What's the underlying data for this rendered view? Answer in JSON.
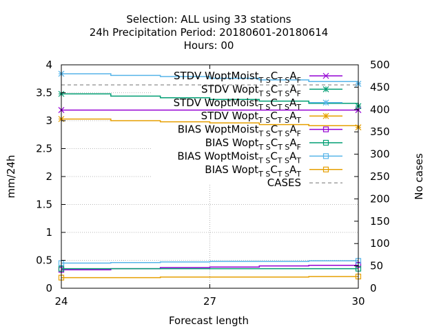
{
  "chart_data": {
    "type": "line",
    "title_lines": [
      "Selection: ALL using    33 stations",
      "24h Precipitation    Period: 20180601-20180614",
      "Hours:  00"
    ],
    "xlabel": "Forecast length",
    "ylabel": "mm/24h",
    "y2label": "No cases",
    "xlim": [
      24,
      30
    ],
    "ylim": [
      0,
      4
    ],
    "y2lim": [
      0,
      500
    ],
    "xticks": [
      "24",
      "27",
      "30"
    ],
    "yticks": [
      "0",
      "0.5",
      "1",
      "1.5",
      "2",
      "2.5",
      "3",
      "3.5",
      "4"
    ],
    "y2ticks": [
      "0",
      "50",
      "100",
      "150",
      "200",
      "250",
      "300",
      "350",
      "400",
      "450",
      "500"
    ],
    "grid": true,
    "legend_position": "top-right",
    "series": [
      {
        "name": "STDV WoptMoist",
        "sub1": "T S",
        "mid": "C",
        "sub2": "T S",
        "mid2": "A",
        "sub3": "F",
        "color": "#9400d3",
        "marker": "x",
        "x": [
          24,
          30
        ],
        "y": [
          3.19,
          3.19
        ]
      },
      {
        "name": "STDV Wopt",
        "sub1": "T S",
        "mid": "C",
        "sub2": "T S",
        "mid2": "A",
        "sub3": "F",
        "color": "#009e73",
        "marker": "star",
        "x": [
          24,
          25,
          26,
          27,
          28,
          29,
          30
        ],
        "y": [
          3.48,
          3.44,
          3.41,
          3.38,
          3.35,
          3.31,
          3.26
        ]
      },
      {
        "name": "STDV WoptMoist",
        "sub1": "T S",
        "mid": "C",
        "sub2": "T S",
        "mid2": "A",
        "sub3": "T",
        "color": "#56b4e9",
        "marker": "star",
        "x": [
          24,
          25,
          26,
          27,
          28,
          29,
          30
        ],
        "y": [
          3.84,
          3.81,
          3.79,
          3.76,
          3.73,
          3.7,
          3.66
        ]
      },
      {
        "name": "STDV Wopt",
        "sub1": "T S",
        "mid": "C",
        "sub2": "T S",
        "mid2": "A",
        "sub3": "T",
        "color": "#e69f00",
        "marker": "star",
        "x": [
          24,
          25,
          26,
          27,
          28,
          29,
          30
        ],
        "y": [
          3.03,
          3.0,
          2.98,
          2.96,
          2.93,
          2.91,
          2.88
        ]
      },
      {
        "name": "BIAS WoptMoist",
        "sub1": "T S",
        "mid": "C",
        "sub2": "T S",
        "mid2": "A",
        "sub3": "F",
        "color": "#9400d3",
        "marker": "square",
        "x": [
          24,
          25,
          26,
          27,
          28,
          29,
          30
        ],
        "y": [
          0.33,
          0.35,
          0.37,
          0.38,
          0.4,
          0.41,
          0.42
        ]
      },
      {
        "name": "BIAS Wopt",
        "sub1": "T S",
        "mid": "C",
        "sub2": "T S",
        "mid2": "A",
        "sub3": "F",
        "color": "#009e73",
        "marker": "square",
        "x": [
          24,
          25,
          26,
          27,
          28,
          29,
          30
        ],
        "y": [
          0.35,
          0.35,
          0.35,
          0.35,
          0.35,
          0.35,
          0.35
        ]
      },
      {
        "name": "BIAS WoptMoist",
        "sub1": "T S",
        "mid": "C",
        "sub2": "T S",
        "mid2": "A",
        "sub3": "T",
        "color": "#56b4e9",
        "marker": "square",
        "x": [
          24,
          25,
          26,
          27,
          28,
          29,
          30
        ],
        "y": [
          0.45,
          0.46,
          0.47,
          0.48,
          0.48,
          0.49,
          0.49
        ]
      },
      {
        "name": "BIAS Wopt",
        "sub1": "T S",
        "mid": "C",
        "sub2": "T S",
        "mid2": "A",
        "sub3": "T",
        "color": "#e69f00",
        "marker": "square",
        "x": [
          24,
          25,
          26,
          27,
          28,
          29,
          30
        ],
        "y": [
          0.19,
          0.19,
          0.2,
          0.2,
          0.2,
          0.21,
          0.21
        ]
      },
      {
        "name": "CASES",
        "color": "#a0a0a0",
        "dashed": true,
        "axis": "y2",
        "x": [
          24,
          30
        ],
        "y": [
          455,
          455
        ]
      }
    ]
  }
}
